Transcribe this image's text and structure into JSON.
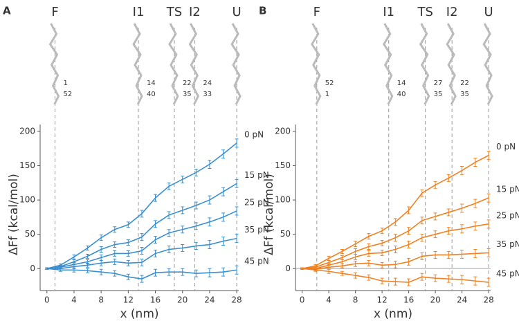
{
  "chart_data": [
    {
      "type": "line",
      "panel_label": "A",
      "xlabel": "x (nm)",
      "ylabel": "ΔFf (kcal/mol)",
      "x": [
        0,
        2,
        4,
        6,
        8,
        10,
        12,
        14,
        16,
        18,
        20,
        22,
        24,
        26,
        28
      ],
      "xlim": [
        -1,
        28.3
      ],
      "ylim": [
        -32,
        210
      ],
      "xticks": [
        0,
        4,
        8,
        12,
        16,
        20,
        24,
        28
      ],
      "yticks": [
        0,
        50,
        100,
        150,
        200
      ],
      "zero_line": false,
      "stages": [
        {
          "label": "F",
          "x": 1.2,
          "residues": [
            "1",
            "52"
          ]
        },
        {
          "label": "I1",
          "x": 13.5,
          "residues": [
            "14",
            "40"
          ]
        },
        {
          "label": "TS",
          "x": 18.8,
          "residues": [
            "22",
            "35"
          ]
        },
        {
          "label": "I2",
          "x": 21.8,
          "residues": [
            "24",
            "33"
          ]
        },
        {
          "label": "U",
          "x": 28,
          "residues": []
        }
      ],
      "series": [
        {
          "name": "0 pN",
          "color": "#3a8fd0",
          "values": [
            0,
            5,
            17,
            30,
            45,
            57,
            64,
            80,
            103,
            120,
            130,
            140,
            152,
            167,
            183
          ],
          "errors": [
            1,
            2,
            3,
            3,
            4,
            4,
            4,
            5,
            5,
            5,
            5,
            5,
            6,
            6,
            6
          ]
        },
        {
          "name": "15 pN",
          "color": "#3a8fd0",
          "values": [
            0,
            3,
            10,
            18,
            28,
            35,
            38,
            46,
            65,
            78,
            85,
            92,
            100,
            112,
            124
          ],
          "errors": [
            1,
            2,
            3,
            3,
            4,
            4,
            4,
            5,
            5,
            5,
            5,
            5,
            6,
            6,
            6
          ]
        },
        {
          "name": "25 pN",
          "color": "#3a8fd0",
          "values": [
            0,
            2,
            6,
            10,
            16,
            22,
            22,
            26,
            42,
            52,
            57,
            62,
            68,
            75,
            84
          ],
          "errors": [
            1,
            2,
            3,
            3,
            4,
            4,
            4,
            5,
            5,
            5,
            5,
            5,
            6,
            6,
            6
          ]
        },
        {
          "name": "35 pN",
          "color": "#3a8fd0",
          "values": [
            0,
            0,
            3,
            5,
            8,
            10,
            8,
            9,
            22,
            28,
            30,
            33,
            35,
            40,
            44
          ],
          "errors": [
            1,
            2,
            3,
            3,
            4,
            4,
            4,
            5,
            5,
            5,
            5,
            5,
            6,
            6,
            6
          ]
        },
        {
          "name": "45 pN",
          "color": "#3a8fd0",
          "values": [
            0,
            -2,
            -2,
            -3,
            -5,
            -7,
            -12,
            -15,
            -6,
            -5,
            -5,
            -7,
            -6,
            -5,
            -2
          ],
          "errors": [
            1,
            2,
            3,
            3,
            4,
            4,
            4,
            5,
            5,
            5,
            5,
            5,
            6,
            6,
            6
          ]
        }
      ]
    },
    {
      "type": "line",
      "panel_label": "B",
      "xlabel": "x (nm)",
      "ylabel": "ΔFf (kcal/mol)",
      "x": [
        0,
        2,
        4,
        6,
        8,
        10,
        12,
        14,
        16,
        18,
        20,
        22,
        24,
        26,
        28
      ],
      "xlim": [
        -1,
        28.3
      ],
      "ylim": [
        -32,
        210
      ],
      "xticks": [
        0,
        4,
        8,
        12,
        16,
        20,
        24,
        28
      ],
      "yticks": [
        0,
        50,
        100,
        150,
        200
      ],
      "zero_line": true,
      "stages": [
        {
          "label": "F",
          "x": 2.2,
          "residues": [
            "52",
            "1"
          ]
        },
        {
          "label": "I1",
          "x": 13,
          "residues": [
            "14",
            "40"
          ]
        },
        {
          "label": "TS",
          "x": 18.5,
          "residues": [
            "27",
            "35"
          ]
        },
        {
          "label": "I2",
          "x": 22.5,
          "residues": [
            "22",
            "35"
          ]
        },
        {
          "label": "U",
          "x": 28,
          "residues": []
        }
      ],
      "series": [
        {
          "name": "0 pN",
          "color": "#f08020",
          "values": [
            0,
            4,
            15,
            25,
            36,
            47,
            55,
            68,
            85,
            110,
            122,
            132,
            143,
            155,
            165
          ],
          "errors": [
            1,
            2,
            3,
            3,
            4,
            4,
            4,
            5,
            5,
            5,
            5,
            5,
            6,
            6,
            6
          ]
        },
        {
          "name": "15 pN",
          "color": "#f08020",
          "values": [
            0,
            2,
            9,
            16,
            25,
            32,
            37,
            45,
            55,
            70,
            76,
            82,
            88,
            95,
            103
          ],
          "errors": [
            1,
            2,
            3,
            3,
            4,
            4,
            4,
            5,
            5,
            5,
            5,
            5,
            6,
            6,
            6
          ]
        },
        {
          "name": "25 pN",
          "color": "#f08020",
          "values": [
            0,
            0,
            5,
            10,
            17,
            22,
            23,
            28,
            35,
            45,
            50,
            55,
            58,
            62,
            65
          ],
          "errors": [
            1,
            2,
            3,
            3,
            4,
            4,
            4,
            5,
            5,
            5,
            5,
            5,
            6,
            6,
            6
          ]
        },
        {
          "name": "35 pN",
          "color": "#f08020",
          "values": [
            0,
            -1,
            2,
            4,
            7,
            8,
            5,
            6,
            10,
            18,
            20,
            20,
            21,
            22,
            23
          ],
          "errors": [
            1,
            2,
            3,
            3,
            4,
            4,
            4,
            5,
            5,
            5,
            5,
            5,
            6,
            6,
            6
          ]
        },
        {
          "name": "45 pN",
          "color": "#f08020",
          "values": [
            0,
            -2,
            -4,
            -7,
            -10,
            -13,
            -18,
            -19,
            -20,
            -12,
            -14,
            -15,
            -16,
            -18,
            -20
          ],
          "errors": [
            1,
            2,
            3,
            3,
            4,
            4,
            4,
            5,
            5,
            5,
            5,
            5,
            6,
            6,
            6
          ]
        }
      ]
    }
  ]
}
